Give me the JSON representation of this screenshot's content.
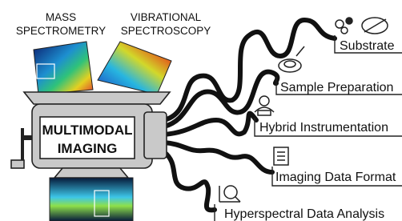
{
  "inputs": [
    {
      "label_lines": [
        "MASS",
        "SPECTROMETRY"
      ]
    },
    {
      "label_lines": [
        "VIBRATIONAL",
        "SPECTROSCOPY"
      ]
    }
  ],
  "machine": {
    "label_lines": [
      "MULTIMODAL",
      "IMAGING"
    ]
  },
  "outputs": [
    {
      "label": "Substrate"
    },
    {
      "label": "Sample Preparation"
    },
    {
      "label": "Hybrid Instrumentation"
    },
    {
      "label": "Imaging Data Format"
    },
    {
      "label": "Hyperspectral Data Analysis"
    }
  ]
}
